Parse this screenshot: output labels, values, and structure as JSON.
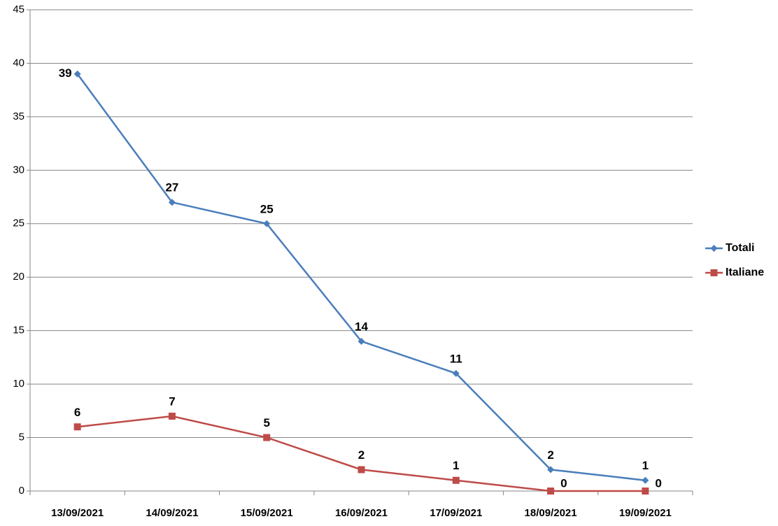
{
  "chart_data": {
    "type": "line",
    "categories": [
      "13/09/2021",
      "14/09/2021",
      "15/09/2021",
      "16/09/2021",
      "17/09/2021",
      "18/09/2021",
      "19/09/2021"
    ],
    "series": [
      {
        "name": "Totali",
        "color": "#4a7ebb",
        "marker": "diamond",
        "values": [
          39,
          27,
          25,
          14,
          11,
          2,
          1
        ]
      },
      {
        "name": "Italiane",
        "color": "#be4b48",
        "marker": "square",
        "values": [
          6,
          7,
          5,
          2,
          1,
          0,
          0
        ]
      }
    ],
    "ylim": [
      0,
      45
    ],
    "yticks": [
      0,
      5,
      10,
      15,
      20,
      25,
      30,
      35,
      40,
      45
    ],
    "grid": true,
    "legend": "right"
  }
}
